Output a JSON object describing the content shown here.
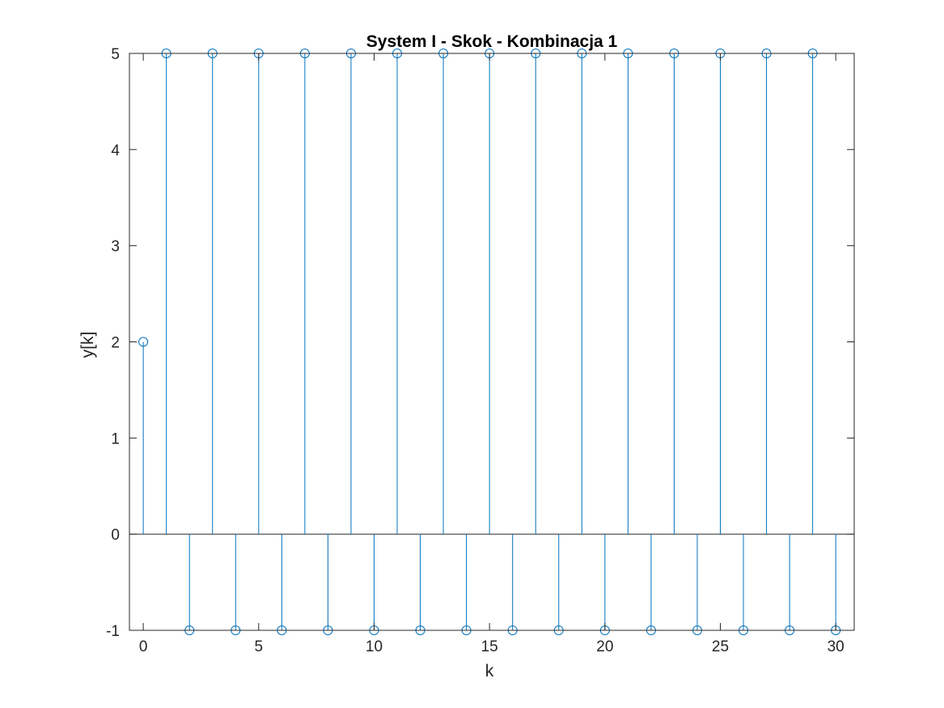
{
  "chart_data": {
    "type": "stem",
    "title": "System I - Skok - Kombinacja 1",
    "xlabel": "k",
    "ylabel": "y[k]",
    "xlim": [
      -0.6,
      30.8
    ],
    "ylim": [
      -1,
      5
    ],
    "xticks": [
      0,
      5,
      10,
      15,
      20,
      25,
      30
    ],
    "yticks": [
      -1,
      0,
      1,
      2,
      3,
      4,
      5
    ],
    "grid": false,
    "series": [
      {
        "x": [
          0,
          1,
          2,
          3,
          4,
          5,
          6,
          7,
          8,
          9,
          10,
          11,
          12,
          13,
          14,
          15,
          16,
          17,
          18,
          19,
          20,
          21,
          22,
          23,
          24,
          25,
          26,
          27,
          28,
          29,
          30
        ],
        "y": [
          2,
          5,
          -1,
          5,
          -1,
          5,
          -1,
          5,
          -1,
          5,
          -1,
          5,
          -1,
          5,
          -1,
          5,
          -1,
          5,
          -1,
          5,
          -1,
          5,
          -1,
          5,
          -1,
          5,
          -1,
          5,
          -1,
          5,
          -1
        ],
        "color": "#0072BD",
        "marker": "circle"
      }
    ]
  }
}
